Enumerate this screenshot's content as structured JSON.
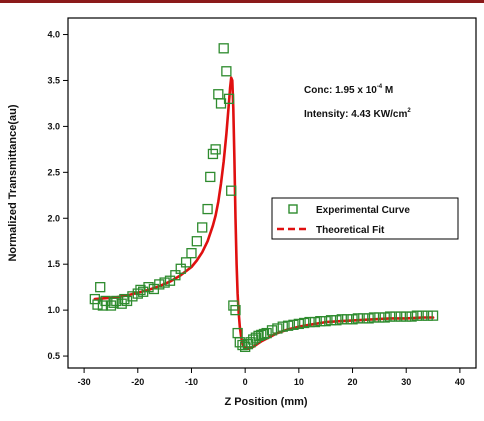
{
  "colors": {
    "experimental": "#2e8b2e",
    "fit": "#e01010",
    "frame": "#000000",
    "top_border": "#8b1a1a"
  },
  "chart_data": {
    "type": "scatter",
    "xlabel": "Z Position (mm)",
    "ylabel": "Normalized Transmittance(au)",
    "xlim": [
      -33,
      43
    ],
    "ylim": [
      0.37,
      4.18
    ],
    "x_ticks": [
      -30,
      -20,
      -10,
      0,
      10,
      20,
      30,
      40
    ],
    "y_ticks": [
      0.5,
      1.0,
      1.5,
      2.0,
      2.5,
      3.0,
      3.5,
      4.0
    ],
    "x_tick_labels": [
      "-30",
      "-20",
      "-10",
      "0",
      "10",
      "20",
      "30",
      "40"
    ],
    "y_tick_labels": [
      "0.5",
      "1.0",
      "1.5",
      "2.0",
      "2.5",
      "3.0",
      "3.5",
      "4.0"
    ],
    "grid": false,
    "legend_position": "right-middle",
    "annotations": {
      "conc_prefix": "Conc: 1.95 x 10",
      "conc_exp": "-4",
      "conc_suffix": " M",
      "intensity_prefix": "Intensity: 4.43 KW/cm",
      "intensity_exp": "2"
    },
    "series": [
      {
        "name": "Experimental Curve",
        "style": "open-square-markers",
        "x": [
          -28,
          -27.5,
          -27,
          -26.5,
          -26,
          -25,
          -24.5,
          -24,
          -23,
          -22.5,
          -22,
          -21,
          -20,
          -19.5,
          -19,
          -18,
          -17,
          -16,
          -15,
          -14,
          -13,
          -12,
          -11,
          -10,
          -9,
          -8,
          -7,
          -6.5,
          -6,
          -5.5,
          -5,
          -4.5,
          -4,
          -3.5,
          -3,
          -2.6,
          -2.2,
          -1.8,
          -1.4,
          -1,
          -0.5,
          0,
          0.5,
          1,
          1.5,
          2,
          2.5,
          3,
          3.5,
          4,
          5,
          6,
          7,
          8,
          9,
          10,
          11,
          12,
          13,
          14,
          15,
          16,
          17,
          18,
          19,
          20,
          21,
          22,
          23,
          24,
          25,
          26,
          27,
          28,
          29,
          30,
          31,
          32,
          33,
          34,
          35
        ],
        "y": [
          1.12,
          1.06,
          1.25,
          1.05,
          1.1,
          1.05,
          1.08,
          1.1,
          1.07,
          1.12,
          1.1,
          1.15,
          1.18,
          1.22,
          1.2,
          1.25,
          1.23,
          1.28,
          1.3,
          1.32,
          1.38,
          1.45,
          1.52,
          1.62,
          1.75,
          1.9,
          2.1,
          2.45,
          2.7,
          2.75,
          3.35,
          3.25,
          3.85,
          3.6,
          3.3,
          2.3,
          1.05,
          1.0,
          0.75,
          0.65,
          0.62,
          0.6,
          0.63,
          0.65,
          0.68,
          0.7,
          0.72,
          0.73,
          0.74,
          0.75,
          0.78,
          0.8,
          0.82,
          0.83,
          0.84,
          0.85,
          0.86,
          0.87,
          0.87,
          0.88,
          0.88,
          0.89,
          0.89,
          0.9,
          0.9,
          0.9,
          0.91,
          0.91,
          0.91,
          0.92,
          0.92,
          0.92,
          0.93,
          0.93,
          0.93,
          0.93,
          0.93,
          0.94,
          0.94,
          0.94,
          0.94
        ]
      },
      {
        "name": "Theoretical Fit",
        "style": "line",
        "x": [
          -28,
          -26,
          -24,
          -22,
          -20,
          -18,
          -16,
          -14,
          -12,
          -10,
          -9,
          -8,
          -7,
          -6,
          -5.5,
          -5,
          -4.5,
          -4,
          -3.5,
          -3,
          -2.8,
          -2.6,
          -2.4,
          -2.2,
          -2,
          -1.8,
          -1.6,
          -1.4,
          -1.2,
          -1,
          -0.8,
          -0.6,
          -0.4,
          -0.2,
          0,
          0.3,
          0.6,
          1,
          1.5,
          2,
          2.5,
          3,
          4,
          5,
          6,
          8,
          10,
          12,
          15,
          18,
          21,
          24,
          27,
          30,
          33,
          35
        ],
        "y": [
          1.12,
          1.13,
          1.14,
          1.16,
          1.19,
          1.22,
          1.26,
          1.31,
          1.38,
          1.47,
          1.54,
          1.63,
          1.75,
          1.92,
          2.03,
          2.18,
          2.38,
          2.62,
          2.92,
          3.28,
          3.42,
          3.53,
          3.5,
          3.2,
          2.65,
          2.0,
          1.5,
          1.18,
          0.97,
          0.82,
          0.73,
          0.66,
          0.62,
          0.6,
          0.59,
          0.58,
          0.58,
          0.59,
          0.6,
          0.62,
          0.64,
          0.66,
          0.69,
          0.72,
          0.75,
          0.79,
          0.82,
          0.84,
          0.87,
          0.88,
          0.89,
          0.9,
          0.91,
          0.91,
          0.92,
          0.92
        ]
      }
    ]
  }
}
